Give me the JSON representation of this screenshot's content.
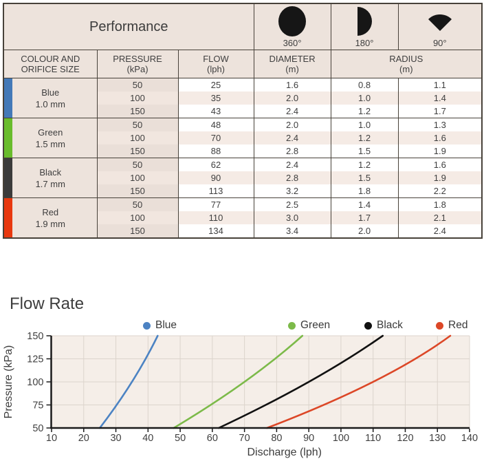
{
  "table": {
    "title": "Performance",
    "spray_patterns": [
      {
        "icon": "circle-360-icon",
        "label": "360°"
      },
      {
        "icon": "half-circle-180-icon",
        "label": "180°"
      },
      {
        "icon": "wedge-90-icon",
        "label": "90°"
      }
    ],
    "headers": {
      "colour_line1": "COLOUR AND",
      "colour_line2": "ORIFICE SIZE",
      "pressure_line1": "PRESSURE",
      "pressure_line2": "(kPa)",
      "flow_line1": "FLOW",
      "flow_line2": "(lph)",
      "diameter_line1": "DIAMETER",
      "diameter_line2": "(m)",
      "radius_line1": "RADIUS",
      "radius_line2": "(m)"
    },
    "groups": [
      {
        "colour": "Blue",
        "orifice": "1.0 mm",
        "bar_color": "#4379B8",
        "rows": [
          [
            "50",
            "25",
            "1.6",
            "0.8",
            "1.1"
          ],
          [
            "100",
            "35",
            "2.0",
            "1.0",
            "1.4"
          ],
          [
            "150",
            "43",
            "2.4",
            "1.2",
            "1.7"
          ]
        ]
      },
      {
        "colour": "Green",
        "orifice": "1.5 mm",
        "bar_color": "#69BC2C",
        "rows": [
          [
            "50",
            "48",
            "2.0",
            "1.0",
            "1.3"
          ],
          [
            "100",
            "70",
            "2.4",
            "1.2",
            "1.6"
          ],
          [
            "150",
            "88",
            "2.8",
            "1.5",
            "1.9"
          ]
        ]
      },
      {
        "colour": "Black",
        "orifice": "1.7 mm",
        "bar_color": "#3B3B3B",
        "rows": [
          [
            "50",
            "62",
            "2.4",
            "1.2",
            "1.6"
          ],
          [
            "100",
            "90",
            "2.8",
            "1.5",
            "1.9"
          ],
          [
            "150",
            "113",
            "3.2",
            "1.8",
            "2.2"
          ]
        ]
      },
      {
        "colour": "Red",
        "orifice": "1.9 mm",
        "bar_color": "#E8380F",
        "rows": [
          [
            "50",
            "77",
            "2.5",
            "1.4",
            "1.8"
          ],
          [
            "100",
            "110",
            "3.0",
            "1.7",
            "2.1"
          ],
          [
            "150",
            "134",
            "3.4",
            "2.0",
            "2.4"
          ]
        ]
      }
    ]
  },
  "chart_data": {
    "type": "line",
    "title": "Flow Rate",
    "xlabel": "Discharge (lph)",
    "ylabel": "Pressure (kPa)",
    "xlim": [
      10,
      140
    ],
    "ylim": [
      50,
      150
    ],
    "x_ticks": [
      10,
      20,
      30,
      40,
      50,
      60,
      70,
      80,
      90,
      100,
      110,
      120,
      130,
      140
    ],
    "y_ticks": [
      50,
      75,
      100,
      125,
      150
    ],
    "grid": true,
    "legend_position": "top",
    "plot_bg": "#F5EEE8",
    "grid_color": "#DCD4CC",
    "axis_color": "#1A1A1A",
    "tick_label_color": "#3F3F3F",
    "series": [
      {
        "name": "Blue",
        "color": "#4C83C3",
        "points": [
          [
            25,
            50
          ],
          [
            35,
            100
          ],
          [
            43,
            150
          ]
        ]
      },
      {
        "name": "Green",
        "color": "#7CBA49",
        "points": [
          [
            48,
            50
          ],
          [
            70,
            100
          ],
          [
            88,
            150
          ]
        ]
      },
      {
        "name": "Black",
        "color": "#111111",
        "points": [
          [
            62,
            50
          ],
          [
            90,
            100
          ],
          [
            113,
            150
          ]
        ]
      },
      {
        "name": "Red",
        "color": "#DC4727",
        "points": [
          [
            77,
            50
          ],
          [
            110,
            100
          ],
          [
            134,
            150
          ]
        ]
      }
    ]
  }
}
